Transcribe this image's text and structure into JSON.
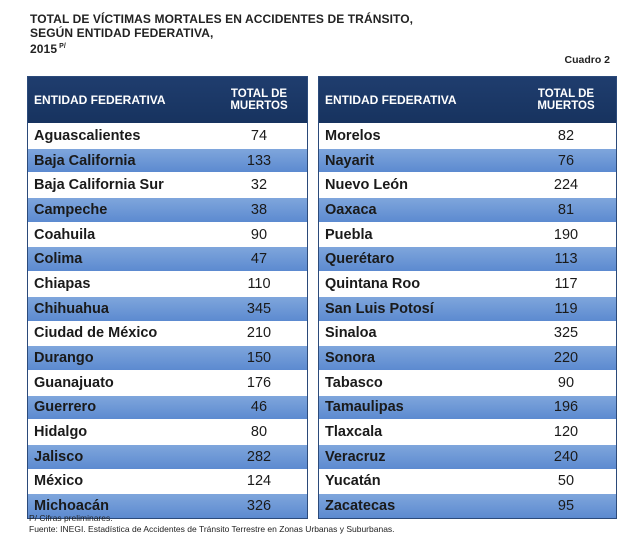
{
  "title": {
    "line1": "TOTAL DE VÍCTIMAS MORTALES EN ACCIDENTES DE TRÁNSITO,",
    "line2": "SEGÚN ENTIDAD FEDERATIVA,",
    "year": "2015",
    "year_sup": "P/"
  },
  "cuadro": "Cuadro 2",
  "header": {
    "col1": "ENTIDAD FEDERATIVA",
    "col2_line1": "TOTAL DE",
    "col2_line2": "MUERTOS"
  },
  "left_rows": [
    {
      "name": "Aguascalientes",
      "value": "74"
    },
    {
      "name": "Baja California",
      "value": "133"
    },
    {
      "name": "Baja California Sur",
      "value": "32"
    },
    {
      "name": "Campeche",
      "value": "38"
    },
    {
      "name": "Coahuila",
      "value": "90"
    },
    {
      "name": "Colima",
      "value": "47"
    },
    {
      "name": "Chiapas",
      "value": "110"
    },
    {
      "name": "Chihuahua",
      "value": "345"
    },
    {
      "name": "Ciudad de México",
      "value": "210"
    },
    {
      "name": "Durango",
      "value": "150"
    },
    {
      "name": "Guanajuato",
      "value": "176"
    },
    {
      "name": "Guerrero",
      "value": "46"
    },
    {
      "name": "Hidalgo",
      "value": "80"
    },
    {
      "name": "Jalisco",
      "value": "282"
    },
    {
      "name": "México",
      "value": "124"
    },
    {
      "name": "Michoacán",
      "value": "326"
    }
  ],
  "right_rows": [
    {
      "name": "Morelos",
      "value": "82"
    },
    {
      "name": "Nayarit",
      "value": "76"
    },
    {
      "name": "Nuevo León",
      "value": "224"
    },
    {
      "name": "Oaxaca",
      "value": "81"
    },
    {
      "name": "Puebla",
      "value": "190"
    },
    {
      "name": "Querétaro",
      "value": "113"
    },
    {
      "name": "Quintana Roo",
      "value": "117"
    },
    {
      "name": "San Luis Potosí",
      "value": "119"
    },
    {
      "name": "Sinaloa",
      "value": "325"
    },
    {
      "name": "Sonora",
      "value": "220"
    },
    {
      "name": "Tabasco",
      "value": "90"
    },
    {
      "name": "Tamaulipas",
      "value": "196"
    },
    {
      "name": "Tlaxcala",
      "value": "120"
    },
    {
      "name": "Veracruz",
      "value": "240"
    },
    {
      "name": "Yucatán",
      "value": "50"
    },
    {
      "name": "Zacatecas",
      "value": "95"
    }
  ],
  "footnotes": {
    "note": "P/ Cifras preliminares.",
    "source": "Fuente: INEGI. Estadística de Accidentes de Tránsito Terrestre en Zonas Urbanas y Suburbanas."
  },
  "colors": {
    "header_bg": "#1f3d6e",
    "band_bg": "#6d98d7",
    "border": "#2b4a7a"
  }
}
